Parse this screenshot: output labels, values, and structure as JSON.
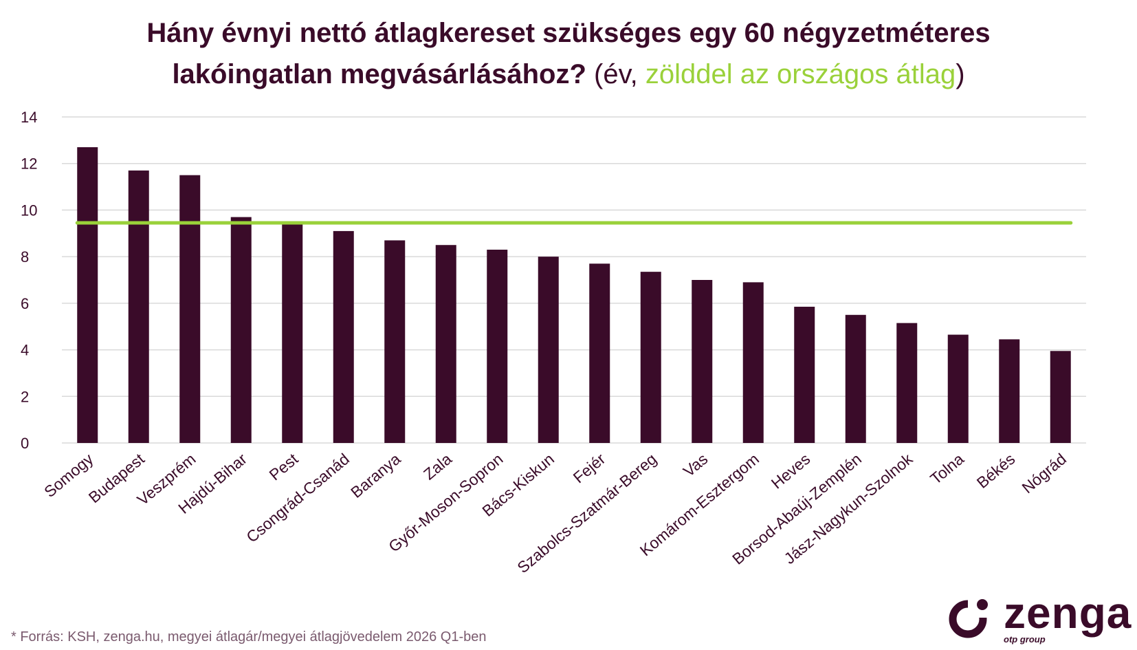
{
  "title": {
    "line1": "Hány évnyi nettó átlagkereset szükséges egy 60 négyzetméteres",
    "line2_bold": "lakóingatlan megvásárlásához?",
    "line2_paren_open": " (év, ",
    "line2_green": "zölddel az országos átlag",
    "line2_paren_close": ")"
  },
  "colors": {
    "bar": "#3a0b29",
    "average_line": "#9ad13a",
    "grid": "#d9d9d9",
    "text": "#3a0b29"
  },
  "chart_data": {
    "type": "bar",
    "categories": [
      "Somogy",
      "Budapest",
      "Veszprém",
      "Hajdú-Bihar",
      "Pest",
      "Csongrád-Csanád",
      "Baranya",
      "Zala",
      "Győr-Moson-Sopron",
      "Bács-Kiskun",
      "Fejér",
      "Szabolcs-Szatmár-Bereg",
      "Vas",
      "Komárom-Esztergom",
      "Heves",
      "Borsod-Abaúj-Zemplén",
      "Jász-Nagykun-Szolnok",
      "Tolna",
      "Békés",
      "Nógrád"
    ],
    "values": [
      12.7,
      11.7,
      11.5,
      9.7,
      9.4,
      9.1,
      8.7,
      8.5,
      8.3,
      8.0,
      7.7,
      7.35,
      7.0,
      6.9,
      5.85,
      5.5,
      5.15,
      4.65,
      4.45,
      3.95
    ],
    "average": 9.45,
    "ylim": [
      0,
      14
    ],
    "yticks": [
      "0",
      "2",
      "4",
      "6",
      "8",
      "10",
      "12",
      "14"
    ],
    "grid": true,
    "xlabel": "",
    "ylabel": ""
  },
  "footnote": "* Forrás: KSH, zenga.hu, megyei átlagár/megyei átlagjövedelem 2026 Q1-ben",
  "logo": {
    "brand": "zenga",
    "tagline": "otp group"
  }
}
